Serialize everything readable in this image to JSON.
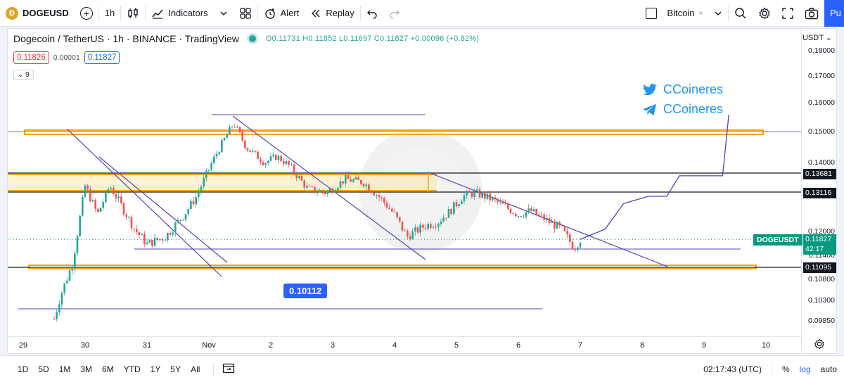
{
  "toolbar": {
    "symbol": "DOGEUSD",
    "coin_glyph": "Ð",
    "interval": "1h",
    "indicators_label": "Indicators",
    "alert_label": "Alert",
    "replay_label": "Replay",
    "watch_label": "Bitcoin",
    "publish_label": "Pu"
  },
  "legend": {
    "title": "Dogecoin / TetherUS · 1h · BINANCE · TradingView",
    "ohlc": "O0.11731 H0.11852 L0.11697 C0.11827 +0.00096 (+0.82%)",
    "bid": "0.11826",
    "spread": "0.00001",
    "ask": "0.11827",
    "collapse_label": "9"
  },
  "price_scale": {
    "currency": "USDT",
    "ticks": [
      "0.18000",
      "0.17000",
      "0.16000",
      "0.15000",
      "0.14000",
      "0.12000",
      "0.11400",
      "0.10800",
      "0.10300",
      "0.09850"
    ],
    "labels": [
      {
        "text": "0.13681"
      },
      {
        "text": "0.13116"
      },
      {
        "text": "0.11095"
      }
    ],
    "current": {
      "symbol": "DOGEUSDT",
      "price": "0.11827",
      "countdown": "42:17"
    }
  },
  "time_scale": {
    "ticks": [
      "29",
      "30",
      "31",
      "Nov",
      "2",
      "3",
      "4",
      "5",
      "6",
      "7",
      "8",
      "9",
      "10"
    ]
  },
  "annotations": {
    "twitter_handle": "CCoineres",
    "telegram_handle": "CCoineres",
    "price_label": "0.10112"
  },
  "bottom_bar": {
    "ranges": [
      "1D",
      "5D",
      "1M",
      "3M",
      "6M",
      "YTD",
      "1Y",
      "5Y",
      "All"
    ],
    "clock": "02:17:43 (UTC)",
    "percent": "%",
    "log": "log",
    "auto": "auto"
  },
  "colors": {
    "up": "#26a69a",
    "down": "#ef5350",
    "zone": "#f7a600",
    "trend": "#5b3fb5",
    "accent": "#2962ff"
  },
  "chart_data": {
    "type": "candlestick",
    "x": [
      "29",
      "30",
      "31",
      "Nov",
      "2",
      "3",
      "4",
      "5",
      "6",
      "7",
      "8",
      "9",
      "10"
    ],
    "ylim": [
      0.0985,
      0.18
    ],
    "levels": [
      0.13681,
      0.13116,
      0.11095,
      0.10112
    ],
    "close_path": [
      [
        29.5,
        0.099
      ],
      [
        29.6,
        0.104
      ],
      [
        29.8,
        0.112
      ],
      [
        30.0,
        0.133
      ],
      [
        30.2,
        0.125
      ],
      [
        30.4,
        0.133
      ],
      [
        30.6,
        0.127
      ],
      [
        30.8,
        0.121
      ],
      [
        31.0,
        0.117
      ],
      [
        31.3,
        0.119
      ],
      [
        31.6,
        0.125
      ],
      [
        31.8,
        0.13
      ],
      [
        32.1,
        0.142
      ],
      [
        32.4,
        0.153
      ],
      [
        32.6,
        0.145
      ],
      [
        32.9,
        0.14
      ],
      [
        33.1,
        0.142
      ],
      [
        33.3,
        0.139
      ],
      [
        33.6,
        0.132
      ],
      [
        33.9,
        0.131
      ],
      [
        34.2,
        0.135
      ],
      [
        34.5,
        0.134
      ],
      [
        34.8,
        0.129
      ],
      [
        35.0,
        0.125
      ],
      [
        35.2,
        0.119
      ],
      [
        35.5,
        0.122
      ],
      [
        35.7,
        0.123
      ],
      [
        35.9,
        0.126
      ],
      [
        36.1,
        0.13
      ],
      [
        36.3,
        0.131
      ],
      [
        36.6,
        0.129
      ],
      [
        36.8,
        0.127
      ],
      [
        37.0,
        0.125
      ],
      [
        37.2,
        0.126
      ],
      [
        37.4,
        0.124
      ],
      [
        37.7,
        0.121
      ],
      [
        37.9,
        0.116
      ],
      [
        38.0,
        0.1183
      ]
    ],
    "projection": [
      [
        38.0,
        0.1183
      ],
      [
        38.4,
        0.121
      ],
      [
        38.7,
        0.128
      ],
      [
        39.1,
        0.13
      ],
      [
        39.4,
        0.13
      ],
      [
        39.6,
        0.136
      ],
      [
        40.0,
        0.136
      ],
      [
        40.3,
        0.136
      ],
      [
        40.4,
        0.156
      ]
    ]
  }
}
